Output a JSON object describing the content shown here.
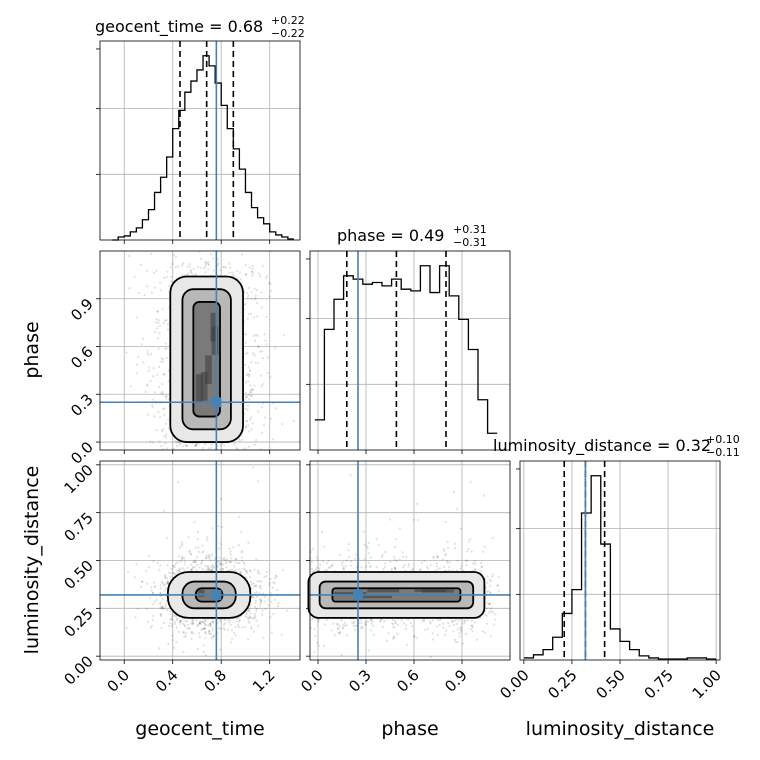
{
  "chart_data": {
    "type": "corner",
    "parameters": [
      "geocent_time",
      "phase",
      "luminosity_distance"
    ],
    "truths": {
      "geocent_time": 0.76,
      "phase": 0.25,
      "luminosity_distance": 0.32
    },
    "grid": true,
    "diagonal": [
      {
        "param": "geocent_time",
        "title_prefix": "geocent_time = ",
        "title_value": "0.68",
        "title_plus": "+0.22",
        "title_minus": "−0.22",
        "quantiles": [
          0.46,
          0.68,
          0.9
        ],
        "range": [
          -0.2,
          1.45
        ],
        "bins_x": [
          -0.1,
          -0.05,
          0.0,
          0.05,
          0.1,
          0.15,
          0.2,
          0.25,
          0.3,
          0.35,
          0.4,
          0.45,
          0.5,
          0.55,
          0.6,
          0.65,
          0.7,
          0.75,
          0.8,
          0.85,
          0.9,
          0.95,
          1.0,
          1.05,
          1.1,
          1.15,
          1.2,
          1.25,
          1.3,
          1.35,
          1.4
        ],
        "counts": [
          0,
          3,
          4,
          8,
          12,
          20,
          30,
          47,
          62,
          82,
          110,
          128,
          146,
          157,
          168,
          182,
          172,
          155,
          133,
          110,
          90,
          70,
          47,
          32,
          22,
          16,
          8,
          5,
          3,
          1
        ]
      },
      {
        "param": "phase",
        "title_prefix": "phase = ",
        "title_value": "0.49",
        "title_plus": "+0.31",
        "title_minus": "−0.31",
        "quantiles": [
          0.18,
          0.49,
          0.8
        ],
        "range": [
          -0.05,
          1.2
        ],
        "bins_x": [
          -0.02,
          0.04,
          0.1,
          0.16,
          0.22,
          0.28,
          0.34,
          0.4,
          0.46,
          0.52,
          0.58,
          0.64,
          0.7,
          0.76,
          0.82,
          0.88,
          0.94,
          1.0,
          1.06,
          1.12
        ],
        "counts": [
          18,
          72,
          90,
          104,
          102,
          99,
          100,
          98,
          102,
          96,
          95,
          110,
          94,
          110,
          92,
          78,
          60,
          30,
          10
        ]
      },
      {
        "param": "luminosity_distance",
        "title_prefix": "luminosity_distance = ",
        "title_value": "0.32",
        "title_plus": "+0.10",
        "title_minus": "−0.11",
        "quantiles": [
          0.21,
          0.32,
          0.42
        ],
        "range": [
          -0.02,
          1.02
        ],
        "bins_x": [
          0.0,
          0.05,
          0.1,
          0.15,
          0.2,
          0.25,
          0.3,
          0.35,
          0.4,
          0.45,
          0.5,
          0.55,
          0.6,
          0.65,
          0.7,
          0.75,
          0.8,
          0.85,
          0.9,
          0.95,
          1.0
        ],
        "counts": [
          2,
          5,
          10,
          22,
          45,
          68,
          142,
          178,
          112,
          30,
          18,
          10,
          4,
          2,
          1,
          1,
          1,
          2,
          2,
          1
        ]
      }
    ],
    "axes": {
      "geocent_time": {
        "label": "geocent_time",
        "ticks": [
          0.0,
          0.4,
          0.8,
          1.2
        ],
        "tick_labels": [
          "0.0",
          "0.4",
          "0.8",
          "1.2"
        ]
      },
      "phase": {
        "label": "phase",
        "ticks": [
          0.0,
          0.3,
          0.6,
          0.9
        ],
        "tick_labels": [
          "0.0",
          "0.3",
          "0.6",
          "0.9"
        ]
      },
      "luminosity_distance": {
        "label": "luminosity_distance",
        "ticks": [
          0.0,
          0.25,
          0.5,
          0.75,
          1.0
        ],
        "tick_labels": [
          "0.00",
          "0.25",
          "0.50",
          "0.75",
          "1.00"
        ]
      }
    },
    "pairs": [
      {
        "x": "geocent_time",
        "y": "phase",
        "center": [
          0.68,
          0.52
        ],
        "spread": [
          0.22,
          0.31
        ],
        "shape": "box",
        "contour_levels": [
          [
            0.11,
            0.36
          ],
          [
            0.2,
            0.44
          ],
          [
            0.3,
            0.52
          ]
        ]
      },
      {
        "x": "geocent_time",
        "y": "luminosity_distance",
        "center": [
          0.7,
          0.32
        ],
        "spread": [
          0.22,
          0.1
        ],
        "shape": "ellipse",
        "contour_levels": [
          [
            0.11,
            0.035
          ],
          [
            0.22,
            0.07
          ],
          [
            0.34,
            0.12
          ]
        ]
      },
      {
        "x": "phase",
        "y": "luminosity_distance",
        "center": [
          0.49,
          0.32
        ],
        "spread": [
          0.31,
          0.1
        ],
        "shape": "box",
        "contour_levels": [
          [
            0.4,
            0.035
          ],
          [
            0.48,
            0.07
          ],
          [
            0.55,
            0.12
          ]
        ]
      }
    ]
  }
}
